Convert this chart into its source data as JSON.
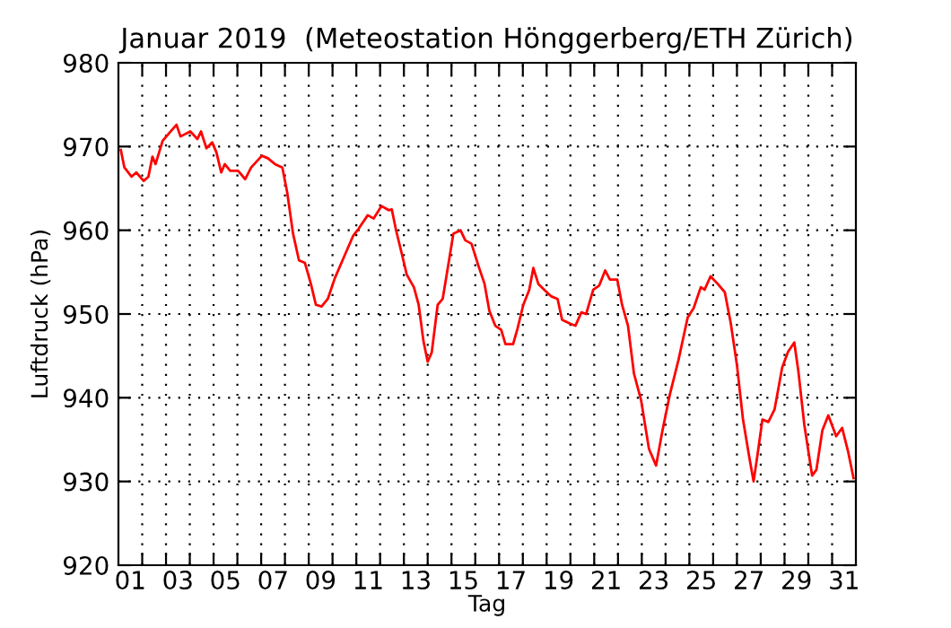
{
  "chart_data": {
    "type": "line",
    "title": "Januar 2019  (Meteostation Hönggerberg/ETH Zürich)",
    "xlabel": "Tag",
    "ylabel": "Luftdruck (hPa)",
    "x": [
      1.1,
      1.25,
      1.55,
      1.75,
      2.06,
      2.26,
      2.43,
      2.56,
      2.86,
      3.19,
      3.44,
      3.61,
      4.02,
      4.32,
      4.47,
      4.7,
      4.94,
      5.12,
      5.32,
      5.47,
      5.7,
      6.03,
      6.33,
      6.58,
      7.03,
      7.28,
      7.58,
      7.89,
      8.09,
      8.34,
      8.59,
      8.84,
      9.09,
      9.3,
      9.54,
      9.8,
      10.1,
      10.48,
      10.86,
      11.1,
      11.48,
      11.73,
      12.06,
      12.36,
      12.49,
      12.67,
      12.92,
      13.12,
      13.42,
      13.62,
      13.82,
      14.0,
      14.17,
      14.42,
      14.63,
      14.88,
      15.08,
      15.38,
      15.58,
      15.84,
      16.14,
      16.39,
      16.59,
      16.84,
      17.09,
      17.27,
      17.59,
      17.77,
      18.02,
      18.27,
      18.44,
      18.65,
      18.9,
      19.2,
      19.46,
      19.65,
      20.03,
      20.21,
      20.46,
      20.66,
      20.96,
      21.21,
      21.46,
      21.66,
      21.97,
      22.17,
      22.42,
      22.67,
      22.97,
      23.3,
      23.6,
      23.87,
      24.18,
      24.55,
      24.93,
      25.18,
      25.48,
      25.64,
      25.89,
      26.19,
      26.49,
      26.74,
      27.0,
      27.25,
      27.5,
      27.7,
      27.9,
      28.07,
      28.32,
      28.58,
      28.9,
      29.15,
      29.41,
      29.58,
      29.83,
      30.16,
      30.34,
      30.59,
      30.84,
      31.17,
      31.42,
      31.67,
      31.9
    ],
    "series": [
      {
        "color": "#ff0000",
        "values": [
          969.6,
          967.5,
          966.4,
          966.9,
          965.9,
          966.4,
          968.8,
          967.9,
          970.7,
          971.8,
          972.6,
          971.2,
          971.8,
          970.9,
          971.8,
          969.8,
          970.5,
          969.3,
          966.9,
          967.9,
          967.1,
          967.1,
          966.1,
          967.5,
          968.9,
          968.6,
          967.9,
          967.5,
          964.6,
          959.6,
          956.4,
          956.1,
          953.6,
          951.1,
          950.9,
          951.8,
          954.3,
          956.8,
          959.3,
          960.2,
          961.8,
          961.4,
          962.9,
          962.4,
          962.5,
          960.0,
          957.1,
          954.7,
          953.2,
          951.1,
          946.8,
          944.3,
          945.4,
          951.1,
          951.8,
          956.1,
          959.6,
          960.0,
          958.8,
          958.4,
          955.7,
          953.6,
          950.4,
          948.6,
          948.1,
          946.4,
          946.4,
          948.2,
          951.1,
          952.9,
          955.5,
          953.6,
          952.9,
          952.1,
          951.8,
          949.3,
          948.8,
          948.6,
          950.2,
          950.0,
          952.9,
          953.4,
          955.2,
          954.1,
          954.1,
          951.1,
          948.6,
          942.9,
          939.7,
          933.9,
          931.9,
          936.1,
          940.4,
          944.6,
          949.6,
          950.7,
          953.2,
          952.9,
          954.5,
          953.6,
          952.6,
          948.9,
          943.9,
          937.5,
          933.2,
          930.0,
          933.9,
          937.4,
          937.1,
          938.6,
          943.6,
          945.5,
          946.6,
          943.2,
          936.8,
          930.7,
          931.4,
          936.1,
          937.9,
          935.4,
          936.4,
          933.6,
          930.4
        ]
      }
    ],
    "xlim": [
      1,
      32
    ],
    "ylim": [
      920,
      980
    ],
    "yticks": [
      920,
      930,
      940,
      950,
      960,
      970,
      980
    ],
    "xticks": [
      {
        "value": 2,
        "label": null
      },
      {
        "value": 3,
        "label": null
      },
      {
        "value": 4,
        "label": null
      },
      {
        "value": 5,
        "label": null
      },
      {
        "value": 6,
        "label": null
      },
      {
        "value": 7,
        "label": null
      },
      {
        "value": 8,
        "label": null
      },
      {
        "value": 9,
        "label": null
      },
      {
        "value": 10,
        "label": null
      },
      {
        "value": 11,
        "label": null
      },
      {
        "value": 12,
        "label": null
      },
      {
        "value": 13,
        "label": null
      },
      {
        "value": 14,
        "label": null
      },
      {
        "value": 15,
        "label": null
      },
      {
        "value": 16,
        "label": null
      },
      {
        "value": 17,
        "label": null
      },
      {
        "value": 18,
        "label": null
      },
      {
        "value": 19,
        "label": null
      },
      {
        "value": 20,
        "label": null
      },
      {
        "value": 21,
        "label": null
      },
      {
        "value": 22,
        "label": null
      },
      {
        "value": 23,
        "label": null
      },
      {
        "value": 24,
        "label": null
      },
      {
        "value": 25,
        "label": null
      },
      {
        "value": 26,
        "label": null
      },
      {
        "value": 27,
        "label": null
      },
      {
        "value": 28,
        "label": null
      },
      {
        "value": 29,
        "label": null
      },
      {
        "value": 30,
        "label": null
      },
      {
        "value": 31,
        "label": null
      },
      {
        "value": 1.5,
        "label": "01"
      },
      {
        "value": 3.5,
        "label": "03"
      },
      {
        "value": 5.5,
        "label": "05"
      },
      {
        "value": 7.5,
        "label": "07"
      },
      {
        "value": 9.5,
        "label": "09"
      },
      {
        "value": 11.5,
        "label": "11"
      },
      {
        "value": 13.5,
        "label": "13"
      },
      {
        "value": 15.5,
        "label": "15"
      },
      {
        "value": 17.5,
        "label": "17"
      },
      {
        "value": 19.5,
        "label": "19"
      },
      {
        "value": 21.5,
        "label": "21"
      },
      {
        "value": 23.5,
        "label": "23"
      },
      {
        "value": 25.5,
        "label": "25"
      },
      {
        "value": 27.5,
        "label": "27"
      },
      {
        "value": 29.5,
        "label": "29"
      },
      {
        "value": 31.5,
        "label": "31"
      }
    ],
    "grid": true,
    "line_style": "solid",
    "marker": "none"
  }
}
